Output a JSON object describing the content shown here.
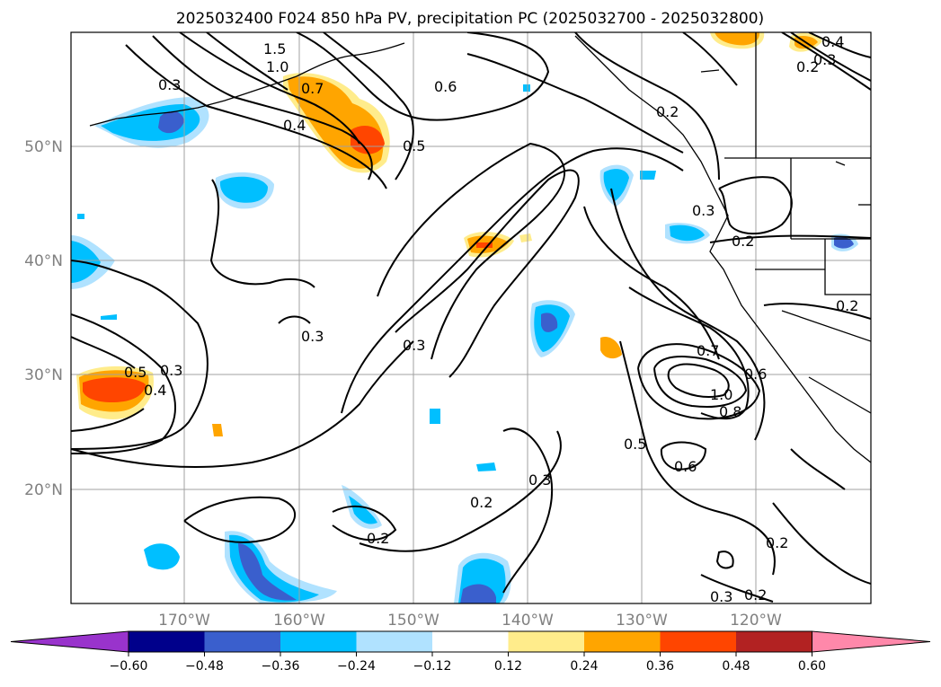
{
  "title": "2025032400 F024 850 hPa PV, precipitation PC (2025032700 - 2025032800)",
  "lat_labels": [
    "50°N",
    "40°N",
    "30°N",
    "20°N"
  ],
  "lon_labels": [
    "170°W",
    "160°W",
    "150°W",
    "140°W",
    "130°W",
    "120°W"
  ],
  "colorbar": {
    "ticks": [
      "−0.60",
      "−0.48",
      "−0.36",
      "−0.24",
      "−0.12",
      "0.12",
      "0.24",
      "0.36",
      "0.48",
      "0.60"
    ],
    "colors": [
      "#9933cc",
      "#00008b",
      "#3a5fcd",
      "#00bfff",
      "#b0e2ff",
      "#ffffff",
      "#ffec8b",
      "#ffa500",
      "#ff4500",
      "#b22222",
      "#ff88aa"
    ]
  },
  "contour_labels": [
    "1.5",
    "1.0",
    "0.7",
    "0.3",
    "0.4",
    "0.5",
    "0.6",
    "0.2",
    "0.4",
    "0.3",
    "0.2",
    "0.3",
    "0.2",
    "0.2",
    "0.3",
    "0.3",
    "0.5",
    "0.4",
    "0.3",
    "0.7",
    "0.6",
    "1.0",
    "0.8",
    "0.5",
    "0.6",
    "0.3",
    "0.2",
    "0.2",
    "0.2",
    "0.3",
    "0.2"
  ],
  "map_colors": {
    "coast": "#000000",
    "contour": "#000000",
    "grid": "#a0a0a0"
  }
}
